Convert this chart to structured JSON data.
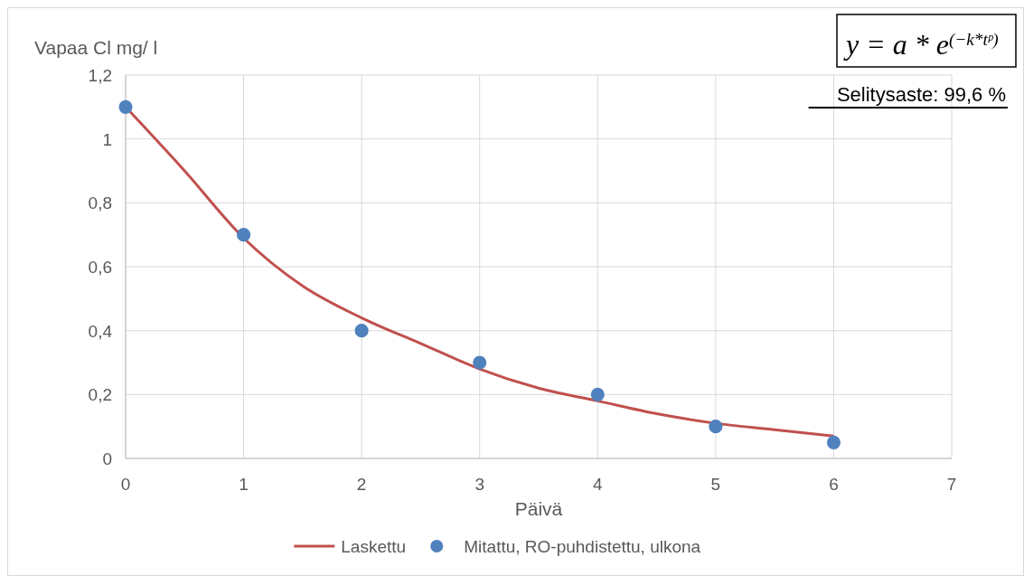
{
  "chart_data": {
    "type": "scatter",
    "xlabel": "Päivä",
    "ylabel": "Vapaa Cl mg/ l",
    "xlim": [
      0,
      7
    ],
    "xticks": [
      0,
      1,
      2,
      3,
      4,
      5,
      6,
      7
    ],
    "ylim": [
      0,
      1.2
    ],
    "yticks": [
      {
        "value": 0,
        "label": "0"
      },
      {
        "value": 0.2,
        "label": "0,2"
      },
      {
        "value": 0.4,
        "label": "0,4"
      },
      {
        "value": 0.6,
        "label": "0,6"
      },
      {
        "value": 0.8,
        "label": "0,8"
      },
      {
        "value": 1,
        "label": "1"
      },
      {
        "value": 1.2,
        "label": "1,2"
      }
    ],
    "grid": true,
    "legend": "bottom",
    "annotations": [
      "y = a * e$^{(−k*tᵖ)}$",
      "Selitysaste: 99,6 %"
    ],
    "series": [
      {
        "name": "Laskettu",
        "type": "line",
        "color": "#c0504d",
        "marker": "none",
        "x": [
          0,
          0.5,
          1,
          1.5,
          2,
          2.5,
          3,
          3.5,
          4,
          4.5,
          5,
          5.5,
          6
        ],
        "values": [
          1.1,
          0.9,
          0.69,
          0.54,
          0.44,
          0.36,
          0.28,
          0.22,
          0.18,
          0.14,
          0.11,
          0.09,
          0.07
        ]
      },
      {
        "name": "Mitattu, RO-puhdistettu, ulkona",
        "color": "#4f81bd",
        "marker": "circle",
        "x": [
          0,
          1,
          2,
          3,
          4,
          5,
          6
        ],
        "values": [
          1.1,
          0.7,
          0.4,
          0.3,
          0.2,
          0.1,
          0.05
        ]
      }
    ]
  }
}
